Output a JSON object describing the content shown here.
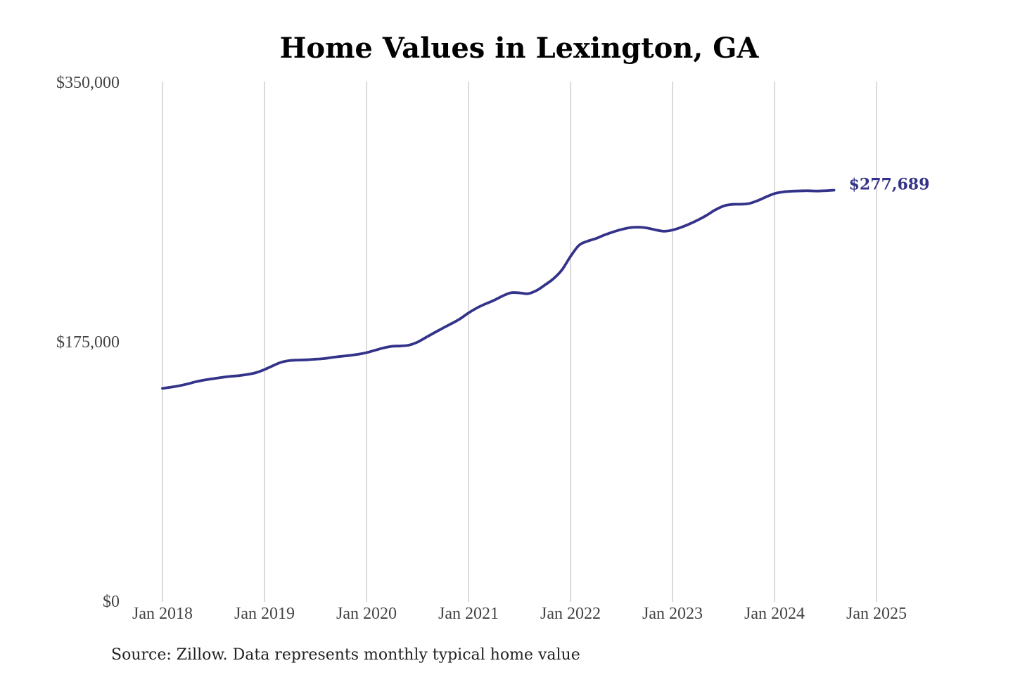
{
  "colors": {
    "line": "#33338a",
    "grid": "#c8c8c8",
    "background": "#ffffff"
  },
  "source_note": "Source: Zillow. Data represents monthly typical home value",
  "chart_data": {
    "type": "line",
    "title": "Home Values in Lexington, GA",
    "xlabel": "",
    "ylabel": "",
    "ylim": [
      0,
      350000
    ],
    "y_ticks": [
      {
        "value": 0,
        "label": "$0"
      },
      {
        "value": 175000,
        "label": "$175,000"
      },
      {
        "value": 350000,
        "label": "$350,000"
      }
    ],
    "x_ticks": [
      "Jan 2018",
      "Jan 2019",
      "Jan 2020",
      "Jan 2021",
      "Jan 2022",
      "Jan 2023",
      "Jan 2024",
      "Jan 2025"
    ],
    "x_gridlines": true,
    "y_gridlines": false,
    "end_label": "$277,689",
    "series": [
      {
        "values": [
          144000,
          144800,
          145800,
          147100,
          148600,
          149700,
          150600,
          151400,
          152100,
          152600,
          153400,
          154600,
          156700,
          159300,
          161700,
          162800,
          163100,
          163300,
          163700,
          164100,
          164900,
          165600,
          166200,
          167000,
          168100,
          169700,
          171300,
          172400,
          172600,
          173200,
          175200,
          178400,
          181600,
          184700,
          187700,
          190900,
          194900,
          198300,
          201000,
          203400,
          206300,
          208500,
          208400,
          207900,
          210000,
          213800,
          218000,
          224000,
          233000,
          240500,
          243300,
          245100,
          247500,
          249500,
          251200,
          252400,
          252700,
          252200,
          250900,
          250000,
          250800,
          252600,
          254900,
          257600,
          260700,
          264300,
          267000,
          268100,
          268200,
          268700,
          270600,
          273100,
          275400,
          276500,
          277000,
          277200,
          277300,
          277100,
          277300,
          277689
        ],
        "dates": [
          "2018-01",
          "2024-12"
        ]
      }
    ]
  }
}
